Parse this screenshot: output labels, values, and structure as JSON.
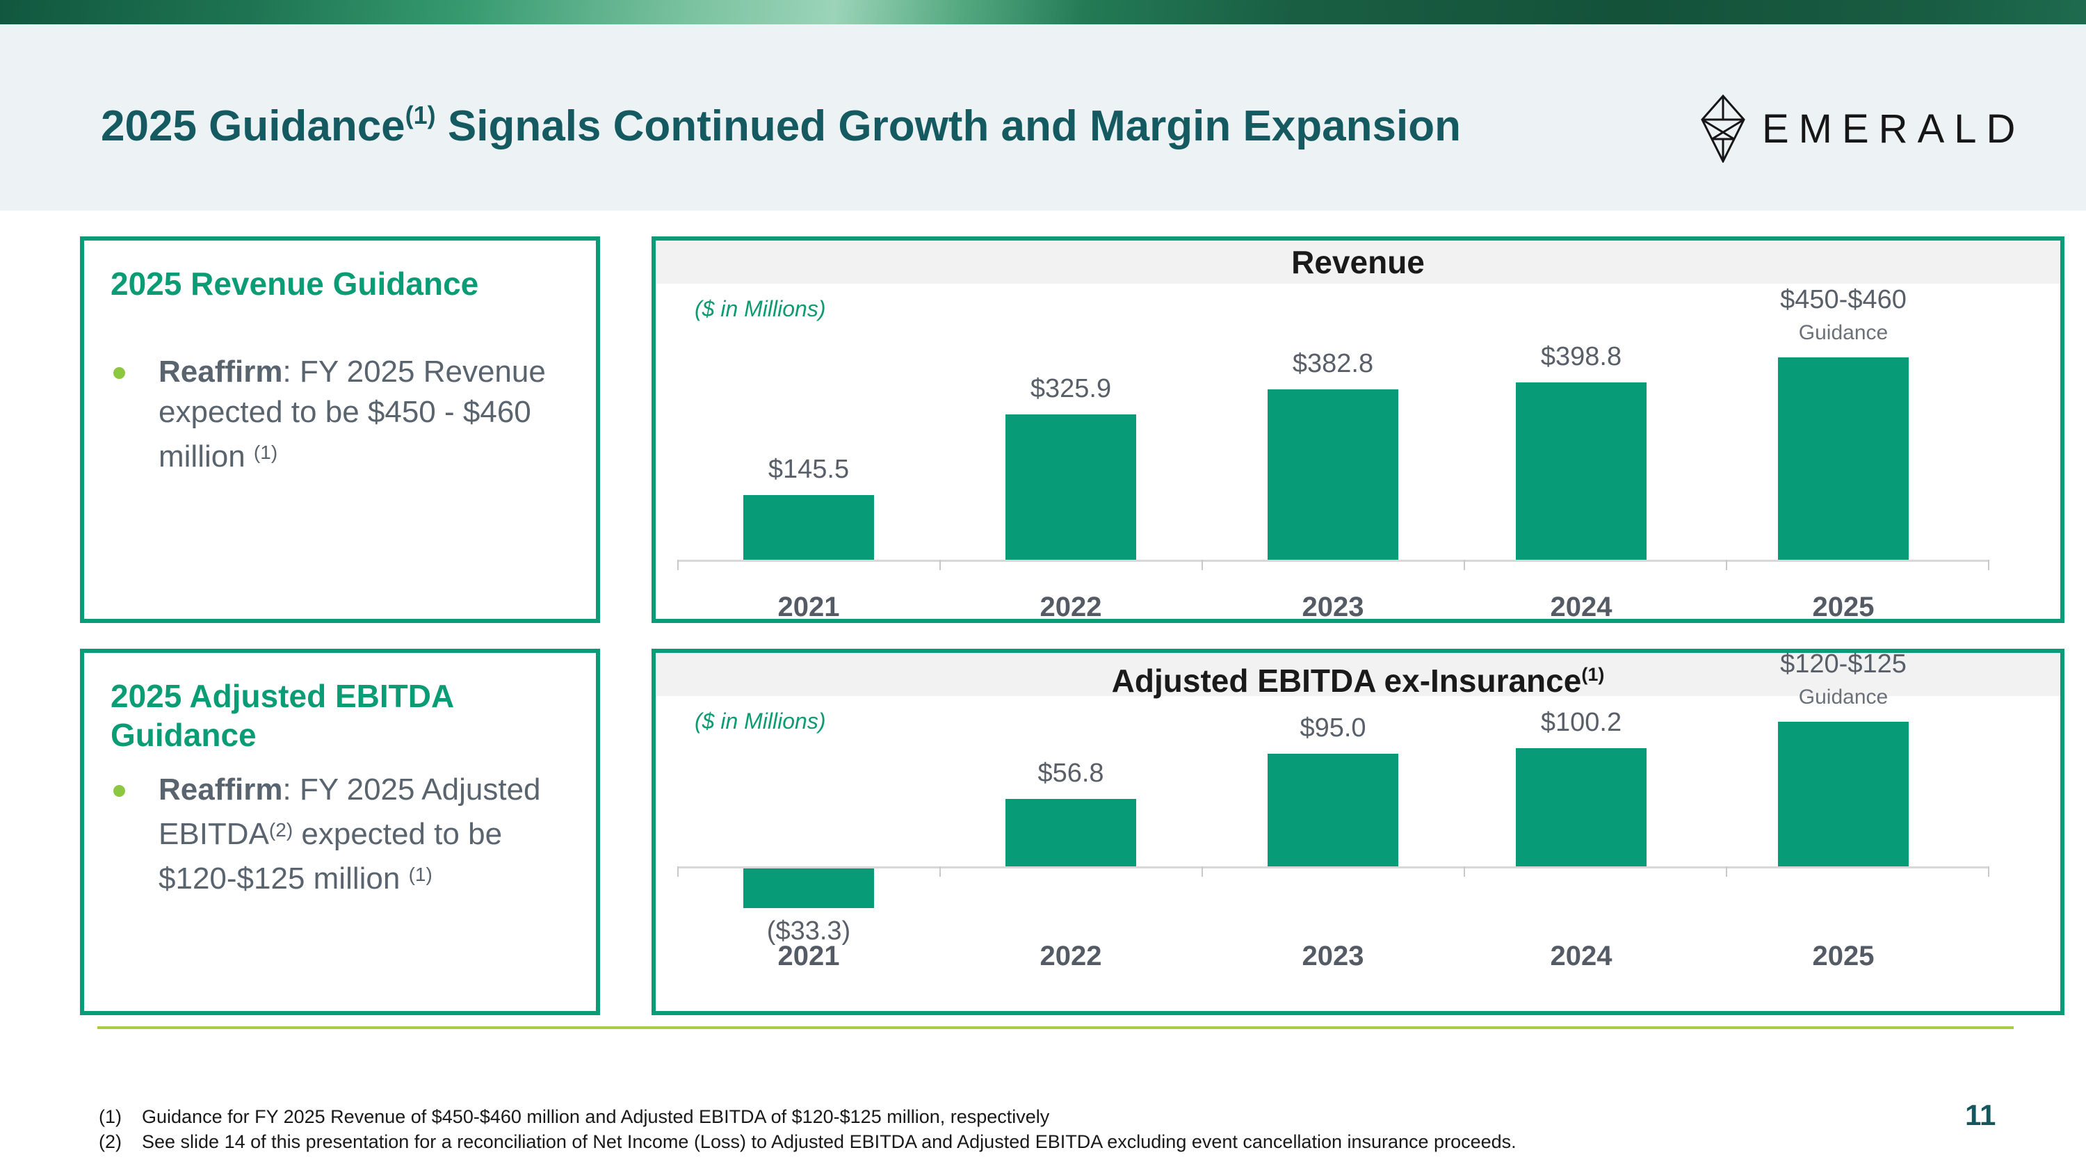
{
  "header": {
    "title_pre": "2025 Guidance",
    "title_sup": "(1)",
    "title_post": " Signals Continued Growth and Margin Expansion",
    "logo_text": "EMERALD"
  },
  "panels": [
    {
      "title": "2025 Revenue Guidance",
      "bullet": {
        "lead": "Reaffirm",
        "text_after_lead": ": FY 2025 Revenue expected to be $450 - $460 million ",
        "sup": "(1)"
      }
    },
    {
      "title": "2025 Adjusted EBITDA Guidance",
      "bullet": {
        "lead": "Reaffirm",
        "seg1": ": FY 2025 Adjusted EBITDA",
        "sup1": "(2)",
        "seg2": " expected to be $120-$125 million ",
        "sup2": "(1)"
      }
    }
  ],
  "chart_data": [
    {
      "type": "bar",
      "title": "Revenue",
      "units_note": "($ in Millions)",
      "categories": [
        "2021",
        "2022",
        "2023",
        "2024",
        "2025"
      ],
      "values": [
        145.5,
        325.9,
        382.8,
        398.8,
        [
          450,
          460
        ]
      ],
      "labels": [
        "$145.5",
        "$325.9",
        "$382.8",
        "$398.8",
        "$450-$460"
      ],
      "sublabels": [
        null,
        null,
        null,
        null,
        "Guidance"
      ],
      "xlabel": "",
      "ylabel": "",
      "ylim": [
        0,
        480
      ],
      "grid": false,
      "legend": "none",
      "bar_color": "#089b77"
    },
    {
      "type": "bar",
      "title": "Adjusted EBITDA ex-Insurance",
      "title_sup": "(1)",
      "units_note": "($ in Millions)",
      "categories": [
        "2021",
        "2022",
        "2023",
        "2024",
        "2025"
      ],
      "values": [
        -33.3,
        56.8,
        95.0,
        100.2,
        [
          120,
          125
        ]
      ],
      "labels": [
        "($33.3)",
        "$56.8",
        "$95.0",
        "$100.2",
        "$120-$125"
      ],
      "sublabels": [
        null,
        null,
        null,
        null,
        "Guidance"
      ],
      "xlabel": "",
      "ylabel": "",
      "ylim": [
        -60,
        140
      ],
      "grid": false,
      "legend": "none",
      "bar_color": "#089b77"
    }
  ],
  "footnotes": [
    {
      "marker": "(1)",
      "text": "Guidance for FY 2025 Revenue of $450-$460 million and Adjusted EBITDA of $120-$125 million, respectively"
    },
    {
      "marker": "(2)",
      "text": "See slide 14 of this presentation for a reconciliation of Net Income (Loss) to Adjusted EBITDA and Adjusted EBITDA excluding event cancellation insurance proceeds."
    }
  ],
  "page_number": "11",
  "colors": {
    "accent_green": "#0a9c78",
    "bar_green": "#089b77",
    "title_teal": "#155a60",
    "panel_title_green": "#0a9c74",
    "bullet_dot_green": "#8dc63f",
    "divider_green": "#a8cd44",
    "header_background": "#edf3f5",
    "chart_header_strip": "#f2f2f2",
    "body_text_gray": "#5a646e"
  }
}
